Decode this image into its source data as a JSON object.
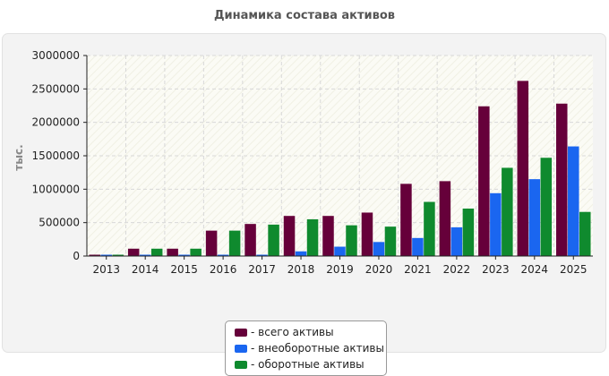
{
  "title": "Динамика состава активов",
  "chart_data": {
    "type": "bar",
    "title": "Динамика состава активов",
    "ylabel": "тыс.",
    "xlabel": "",
    "ylim": [
      0,
      3000000
    ],
    "yticks": [
      "0",
      "500000",
      "1000000",
      "1500000",
      "2000000",
      "2500000",
      "3000000"
    ],
    "categories": [
      "2013",
      "2014",
      "2015",
      "2016",
      "2017",
      "2018",
      "2019",
      "2020",
      "2021",
      "2022",
      "2023",
      "2024",
      "2025"
    ],
    "grid": true,
    "legend_position": "bottom",
    "series": [
      {
        "name": "- всего активы",
        "color": "#66003a",
        "values": [
          10000,
          110000,
          110000,
          380000,
          480000,
          600000,
          600000,
          650000,
          1080000,
          1120000,
          2240000,
          2620000,
          2280000
        ]
      },
      {
        "name": "- внеоборотные активы",
        "color": "#1a66f0",
        "values": [
          5000,
          5000,
          5000,
          5000,
          5000,
          70000,
          140000,
          210000,
          270000,
          430000,
          940000,
          1150000,
          1640000
        ]
      },
      {
        "name": "- оборотные активы",
        "color": "#0f8a2e",
        "values": [
          5000,
          110000,
          110000,
          380000,
          470000,
          550000,
          460000,
          440000,
          810000,
          710000,
          1320000,
          1470000,
          660000
        ]
      }
    ]
  }
}
